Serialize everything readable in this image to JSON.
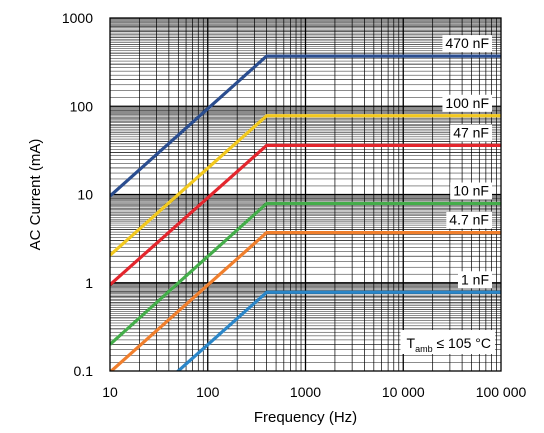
{
  "chart_data": {
    "type": "line",
    "xlabel": "Frequency (Hz)",
    "ylabel": "AC Current (mA)",
    "x_scale": "log",
    "y_scale": "log",
    "xlim": [
      10,
      100000
    ],
    "ylim": [
      0.1,
      1000
    ],
    "grid": true,
    "x_ticks": [
      {
        "value": 10,
        "label": "10"
      },
      {
        "value": 100,
        "label": "100"
      },
      {
        "value": 1000,
        "label": "1000"
      },
      {
        "value": 10000,
        "label": "10 000"
      },
      {
        "value": 100000,
        "label": "100 000"
      }
    ],
    "y_ticks": [
      {
        "value": 0.1,
        "label": "0.1"
      },
      {
        "value": 1,
        "label": "1"
      },
      {
        "value": 10,
        "label": "10"
      },
      {
        "value": 100,
        "label": "100"
      },
      {
        "value": 1000,
        "label": "1000"
      }
    ],
    "series": [
      {
        "name": "470 nF",
        "color": "#2a4d8f",
        "x": [
          10,
          400,
          100000
        ],
        "y": [
          9.6,
          370,
          370
        ]
      },
      {
        "name": "100 nF",
        "color": "#f2c81e",
        "x": [
          10,
          400,
          100000
        ],
        "y": [
          2.05,
          78,
          78
        ]
      },
      {
        "name": "47 nF",
        "color": "#e3262d",
        "x": [
          10,
          400,
          100000
        ],
        "y": [
          0.95,
          36,
          36
        ]
      },
      {
        "name": "10 nF",
        "color": "#44ad4a",
        "x": [
          10,
          400,
          100000
        ],
        "y": [
          0.2,
          7.9,
          7.9
        ]
      },
      {
        "name": "4.7 nF",
        "color": "#f07f2d",
        "x": [
          10,
          400,
          100000
        ],
        "y": [
          0.097,
          3.7,
          3.7
        ]
      },
      {
        "name": "1 nF",
        "color": "#2b86c8",
        "x": [
          10,
          400,
          100000
        ],
        "y": [
          0.0205,
          0.78,
          0.78
        ]
      }
    ],
    "annotation": {
      "main": "T",
      "sub": "amb",
      "rest": " ≤ 105 °C"
    }
  }
}
